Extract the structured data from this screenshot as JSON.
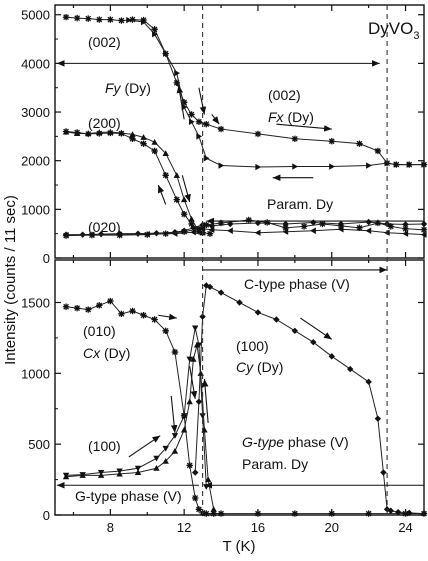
{
  "chart_data": {
    "type": "line",
    "ylabel": "Intensity (counts / 11 sec)",
    "xlabel": "T (K)",
    "xlim": [
      5,
      25
    ],
    "x_ticks": [
      "8",
      "12",
      "16",
      "20",
      "24"
    ],
    "sample_label": "DyVO3",
    "panels": [
      {
        "name": "top",
        "ylim": [
          0,
          5200
        ],
        "y_ticks": [
          "0",
          "1000",
          "2000",
          "3000",
          "4000",
          "5000"
        ],
        "series": [
          {
            "x": [
              5.6,
              6.2,
              6.8,
              7.4,
              8.0,
              8.6,
              9.2,
              9.8,
              10.4,
              11.0,
              11.6,
              12.0,
              12.4,
              12.8,
              13.2,
              14.0,
              16.0,
              18.0,
              20.0,
              21.5,
              22.5,
              23.0,
              23.5,
              24.2,
              25.0
            ],
            "y": [
              4950,
              4930,
              4920,
              4900,
              4900,
              4880,
              4900,
              4890,
              4700,
              4200,
              3600,
              3200,
              2950,
              2800,
              2750,
              2650,
              2550,
              2450,
              2400,
              2350,
              2200,
              1950,
              1920,
              1920,
              1920
            ]
          },
          {
            "x": [
              9.0,
              9.8,
              10.4,
              11.0,
              11.6,
              12.0,
              12.4,
              12.8,
              13.2,
              14.0,
              16.0,
              18.0,
              20.0,
              22.0,
              23.0,
              23.5,
              24.2,
              25.0
            ],
            "y": [
              4890,
              4850,
              4600,
              4200,
              3800,
              3100,
              2800,
              2500,
              2050,
              1900,
              1870,
              1880,
              1880,
              1900,
              1950,
              1920,
              1920,
              1920
            ]
          },
          {
            "x": [
              5.6,
              6.2,
              6.8,
              7.4,
              8.0,
              8.6,
              9.2,
              9.8,
              10.4,
              11.0,
              11.6,
              12.0,
              12.4,
              12.8,
              13.0,
              13.4
            ],
            "y": [
              2600,
              2580,
              2550,
              2560,
              2570,
              2560,
              2450,
              2350,
              2200,
              1700,
              1200,
              900,
              700,
              550,
              520,
              500
            ]
          },
          {
            "x": [
              5.6,
              6.2,
              6.8,
              7.4,
              8.0,
              8.6,
              9.2,
              9.8,
              10.4,
              11.0,
              11.6,
              12.0,
              12.4,
              12.8,
              13.0
            ],
            "y": [
              2590,
              2560,
              2560,
              2580,
              2590,
              2570,
              2540,
              2480,
              2380,
              2150,
              1700,
              1200,
              800,
              550,
              520
            ]
          },
          {
            "x": [
              5.6,
              6.5,
              7.5,
              8.5,
              9.5,
              10.5,
              11.5,
              12.0,
              12.5,
              13.0,
              13.5,
              14.5,
              16.0,
              17.5,
              19.0,
              20.5,
              22.0,
              23.0,
              24.0,
              25.0
            ],
            "y": [
              480,
              480,
              490,
              500,
              500,
              510,
              530,
              560,
              620,
              680,
              660,
              700,
              720,
              700,
              730,
              700,
              740,
              700,
              690,
              700
            ]
          },
          {
            "x": [
              5.6,
              7.0,
              8.5,
              10.0,
              11.5,
              12.5,
              13.0,
              13.5,
              14.5,
              16.0,
              17.5,
              19.0,
              20.5,
              22.0,
              23.0,
              24.0,
              25.0
            ],
            "y": [
              470,
              480,
              480,
              490,
              500,
              530,
              600,
              580,
              560,
              520,
              540,
              560,
              590,
              560,
              520,
              500,
              480
            ]
          },
          {
            "x": [
              5.6,
              7.0,
              8.5,
              10.0,
              11.0,
              12.0,
              12.8,
              13.2,
              14.0,
              15.5,
              16.5,
              17.5,
              18.5,
              19.5,
              20.5,
              21.5,
              22.5,
              23.2,
              24.0,
              25.0
            ],
            "y": [
              460,
              470,
              470,
              480,
              500,
              540,
              600,
              680,
              720,
              780,
              730,
              620,
              650,
              700,
              660,
              620,
              720,
              650,
              600,
              580
            ]
          }
        ]
      },
      {
        "name": "bottom",
        "ylim": [
          0,
          1800
        ],
        "y_ticks": [
          "0",
          "500",
          "1000",
          "1500"
        ],
        "series": [
          {
            "x": [
              5.6,
              6.2,
              6.8,
              7.4,
              8.0,
              8.6,
              9.2,
              9.8,
              10.4,
              11.0,
              11.5,
              12.0,
              12.3,
              12.6,
              12.8,
              13.0,
              13.2,
              13.6,
              14.0,
              16.0,
              18.0,
              20.0,
              22.0,
              24.0,
              25.0
            ],
            "y": [
              1470,
              1460,
              1450,
              1480,
              1510,
              1420,
              1440,
              1410,
              1380,
              1300,
              1150,
              700,
              350,
              120,
              40,
              15,
              10,
              10,
              10,
              10,
              10,
              10,
              10,
              10,
              10
            ]
          },
          {
            "x": [
              5.6,
              6.5,
              7.5,
              8.5,
              9.5,
              10.5,
              11.0,
              11.5,
              12.0,
              12.3,
              12.6,
              12.8,
              13.0,
              13.2
            ],
            "y": [
              280,
              285,
              300,
              310,
              330,
              400,
              470,
              560,
              700,
              1100,
              1320,
              1200,
              700,
              200
            ]
          },
          {
            "x": [
              5.6,
              6.5,
              7.5,
              8.5,
              9.5,
              10.5,
              11.0,
              11.5,
              12.0,
              12.3,
              12.5,
              12.7,
              12.9,
              13.1,
              13.3,
              13.6
            ],
            "y": [
              270,
              280,
              280,
              290,
              300,
              330,
              380,
              450,
              600,
              800,
              1100,
              1200,
              1000,
              600,
              250,
              40
            ]
          },
          {
            "x": [
              12.6,
              12.8,
              13.0,
              13.2,
              13.4,
              14.0,
              15.0,
              16.0,
              17.0,
              18.0,
              19.0,
              20.0,
              21.0,
              22.0,
              22.5,
              22.8,
              23.0,
              23.2,
              23.6,
              24.2,
              25.0
            ],
            "y": [
              300,
              800,
              1400,
              1620,
              1610,
              1570,
              1500,
              1430,
              1380,
              1300,
              1220,
              1120,
              1030,
              940,
              680,
              300,
              40,
              30,
              20,
              15,
              10
            ]
          }
        ]
      }
    ],
    "labels": {
      "top_002_a": "(002)",
      "top_200": "(200)",
      "top_020": "(020)",
      "top_fy": "Fy (Dy)",
      "top_002_b": "(002)",
      "top_fx": "Fx (Dy)",
      "top_param": "Param. Dy",
      "bot_ctype": "C-type phase (V)",
      "bot_010": "(010)",
      "bot_cx": "Cx (Dy)",
      "bot_100_a": "(100)",
      "bot_cy": "Cy (Dy)",
      "bot_100_b": "(100)",
      "bot_gtype_v": "G-type phase (V)",
      "bot_param": "Param. Dy",
      "bot_gtype": "G-type phase (V)"
    }
  }
}
